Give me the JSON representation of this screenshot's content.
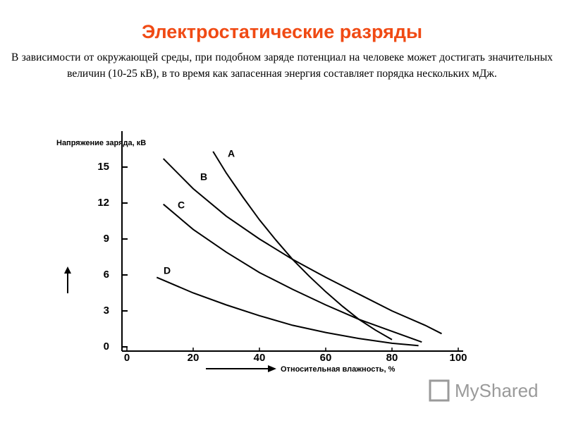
{
  "slide": {
    "title": "Электростатические разряды",
    "text": "В зависимости от окружающей среды, при подобном заряде потенциал на человеке может достигать значительных величин (10-25 кВ), в то время как запасенная энергия составляет порядка нескольких мДж."
  },
  "watermark": "MyShared",
  "chart_data": {
    "type": "line",
    "ylabel": "Напряжение заряда, кВ",
    "xlabel": "Относительная влажность, %",
    "xlim": [
      0,
      100
    ],
    "xticks": [
      0,
      20,
      40,
      60,
      80,
      100
    ],
    "ylim": [
      0,
      18
    ],
    "yticks": [
      0,
      3,
      6,
      9,
      12,
      15
    ],
    "grid": false,
    "series": [
      {
        "name": "A",
        "color": "#000000",
        "x": [
          26,
          30,
          35,
          40,
          45,
          50,
          55,
          60,
          65,
          70,
          75,
          80
        ],
        "values": [
          16.3,
          14.5,
          12.5,
          10.6,
          8.9,
          7.3,
          5.9,
          4.6,
          3.4,
          2.3,
          1.4,
          0.6
        ]
      },
      {
        "name": "B",
        "color": "#000000",
        "x": [
          11,
          20,
          30,
          40,
          50,
          60,
          70,
          80,
          90,
          95
        ],
        "values": [
          15.7,
          13.2,
          10.9,
          9.0,
          7.3,
          5.8,
          4.4,
          3.0,
          1.8,
          1.1
        ]
      },
      {
        "name": "C",
        "color": "#000000",
        "x": [
          11,
          20,
          30,
          40,
          50,
          60,
          70,
          80,
          89
        ],
        "values": [
          11.9,
          9.8,
          7.9,
          6.2,
          4.8,
          3.5,
          2.3,
          1.3,
          0.4
        ]
      },
      {
        "name": "D",
        "color": "#000000",
        "x": [
          9,
          20,
          30,
          40,
          50,
          60,
          70,
          80,
          88
        ],
        "values": [
          5.8,
          4.5,
          3.5,
          2.6,
          1.8,
          1.2,
          0.7,
          0.3,
          0.1
        ]
      }
    ]
  }
}
